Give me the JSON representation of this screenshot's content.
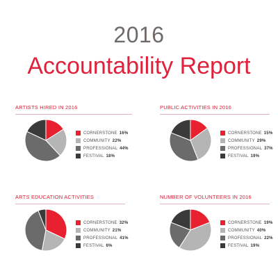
{
  "header": {
    "year": "2016",
    "title": "Accountability Report"
  },
  "colors": {
    "cornerstone": "#e8202f",
    "community": "#b5b5b5",
    "professional": "#6b6b6b",
    "festival": "#3a3a3a"
  },
  "chart_data": [
    {
      "type": "pie",
      "title": "ARTISTS HIRED IN 2016",
      "labels": [
        "CORNERSTONE",
        "COMMUNITY",
        "PROFESSIONAL",
        "FESTIVAL"
      ],
      "values": [
        16,
        22,
        44,
        18
      ],
      "value_labels": [
        "16%",
        "22%",
        "44%",
        "18%"
      ],
      "legend": "right"
    },
    {
      "type": "pie",
      "title": "PUBLIC ACTIVITIES IN 2016",
      "labels": [
        "CORNERSTONE",
        "COMMUNITY",
        "PROFESSIONAL",
        "FESTIVAL"
      ],
      "values": [
        15,
        29,
        37,
        19
      ],
      "value_labels": [
        "15%",
        "29%",
        "37%",
        "19%"
      ],
      "legend": "right"
    },
    {
      "type": "pie",
      "title": "ARTS EDUCATION ACTIVITIES",
      "labels": [
        "CORNERSTONE",
        "COMMUNITY",
        "PROFESSIONAL",
        "FESTIVAL"
      ],
      "values": [
        32,
        21,
        41,
        6
      ],
      "value_labels": [
        "32%",
        "21%",
        "41%",
        "6%"
      ],
      "legend": "right"
    },
    {
      "type": "pie",
      "title": "NUMBER OF VOLUNTEERS IN 2016",
      "labels": [
        "CORNERSTONE",
        "COMMUNITY",
        "PROFESSIONAL",
        "FESTIVAL"
      ],
      "values": [
        19,
        40,
        22,
        19
      ],
      "value_labels": [
        "19%",
        "40%",
        "22%",
        "19%"
      ],
      "legend": "right"
    }
  ]
}
